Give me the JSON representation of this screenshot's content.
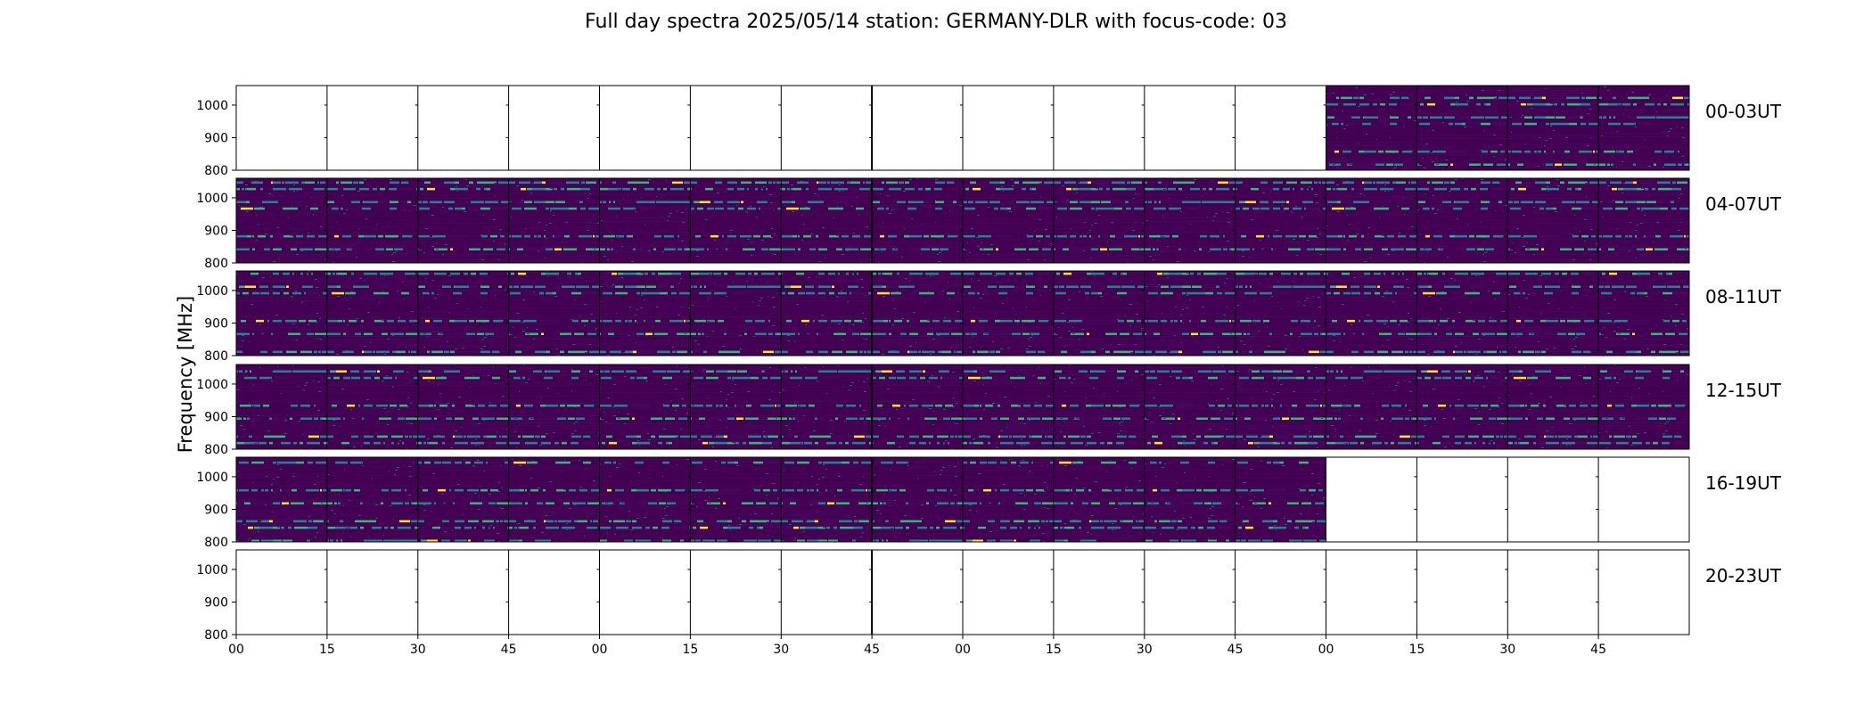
{
  "chart_data": {
    "type": "heatmap",
    "title": "Full day spectra 2025/05/14 station: GERMANY-DLR with focus-code: 03",
    "ylabel": "Frequency [MHz]",
    "xlabel": "",
    "ylim": [
      800,
      1060
    ],
    "yticks": [
      "1000",
      "900",
      "800"
    ],
    "ytick_values": [
      1000,
      900,
      800
    ],
    "xticks": [
      "00",
      "15",
      "30",
      "45",
      "00",
      "15",
      "30",
      "45",
      "00",
      "15",
      "30",
      "45",
      "00",
      "15",
      "30",
      "45"
    ],
    "rows": [
      {
        "label": "00-03UT",
        "panels_with_data": [
          12,
          13,
          14,
          15
        ]
      },
      {
        "label": "04-07UT",
        "panels_with_data": [
          0,
          1,
          2,
          3,
          4,
          5,
          6,
          7,
          8,
          9,
          10,
          11,
          12,
          13,
          14,
          15
        ]
      },
      {
        "label": "08-11UT",
        "panels_with_data": [
          0,
          1,
          2,
          3,
          4,
          5,
          6,
          7,
          8,
          9,
          10,
          11,
          12,
          13,
          14,
          15
        ]
      },
      {
        "label": "12-15UT",
        "panels_with_data": [
          0,
          1,
          2,
          3,
          4,
          5,
          6,
          7,
          8,
          9,
          10,
          11,
          12,
          13,
          14,
          15
        ]
      },
      {
        "label": "16-19UT",
        "panels_with_data": [
          0,
          1,
          2,
          3,
          4,
          5,
          6,
          7,
          8,
          9,
          10,
          11
        ]
      },
      {
        "label": "20-23UT",
        "panels_with_data": []
      }
    ],
    "panels_per_row": 16,
    "panel_minutes": 15,
    "colormap": "viridis",
    "colors": {
      "background": "#440154",
      "low": "#46085c",
      "mid": "#26828e",
      "high": "#35b779",
      "peak": "#fde725"
    },
    "bright_bands_mhz": [
      1020,
      1000,
      960,
      940,
      855,
      815
    ]
  }
}
